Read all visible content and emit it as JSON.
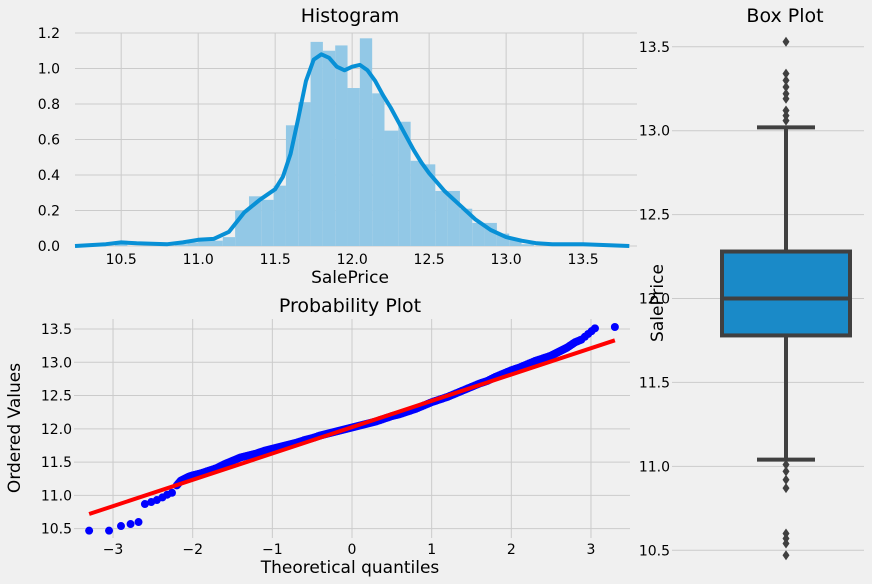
{
  "chart_data": [
    {
      "type": "bar",
      "title": "Histogram",
      "xlabel": "SalePrice",
      "ylabel": "",
      "xlim": [
        10.2,
        13.85
      ],
      "ylim": [
        0,
        1.2
      ],
      "xticks": [
        "10.5",
        "11.0",
        "11.5",
        "12.0",
        "12.5",
        "13.0",
        "13.5"
      ],
      "yticks": [
        "0.0",
        "0.2",
        "0.4",
        "0.6",
        "0.8",
        "1.0",
        "1.2"
      ],
      "grid": true,
      "bins": [
        {
          "x0": 10.46,
          "x1": 10.54,
          "value": 0.01
        },
        {
          "x0": 10.85,
          "x1": 10.93,
          "value": 0.01
        },
        {
          "x0": 10.93,
          "x1": 11.0,
          "value": 0.02
        },
        {
          "x0": 11.0,
          "x1": 11.08,
          "value": 0.03
        },
        {
          "x0": 11.08,
          "x1": 11.16,
          "value": 0.03
        },
        {
          "x0": 11.16,
          "x1": 11.24,
          "value": 0.05
        },
        {
          "x0": 11.24,
          "x1": 11.33,
          "value": 0.2
        },
        {
          "x0": 11.33,
          "x1": 11.41,
          "value": 0.28
        },
        {
          "x0": 11.41,
          "x1": 11.49,
          "value": 0.26
        },
        {
          "x0": 11.49,
          "x1": 11.57,
          "value": 0.34
        },
        {
          "x0": 11.57,
          "x1": 11.65,
          "value": 0.68
        },
        {
          "x0": 11.65,
          "x1": 11.73,
          "value": 0.81
        },
        {
          "x0": 11.73,
          "x1": 11.81,
          "value": 1.15
        },
        {
          "x0": 11.81,
          "x1": 11.89,
          "value": 1.1
        },
        {
          "x0": 11.89,
          "x1": 11.97,
          "value": 1.13
        },
        {
          "x0": 11.97,
          "x1": 12.05,
          "value": 0.89
        },
        {
          "x0": 12.05,
          "x1": 12.13,
          "value": 1.17
        },
        {
          "x0": 12.13,
          "x1": 12.21,
          "value": 0.86
        },
        {
          "x0": 12.21,
          "x1": 12.3,
          "value": 0.65
        },
        {
          "x0": 12.3,
          "x1": 12.38,
          "value": 0.7
        },
        {
          "x0": 12.38,
          "x1": 12.46,
          "value": 0.48
        },
        {
          "x0": 12.46,
          "x1": 12.54,
          "value": 0.46
        },
        {
          "x0": 12.54,
          "x1": 12.62,
          "value": 0.31
        },
        {
          "x0": 12.62,
          "x1": 12.7,
          "value": 0.31
        },
        {
          "x0": 12.7,
          "x1": 12.78,
          "value": 0.21
        },
        {
          "x0": 12.78,
          "x1": 12.86,
          "value": 0.13
        },
        {
          "x0": 12.86,
          "x1": 12.94,
          "value": 0.13
        },
        {
          "x0": 12.94,
          "x1": 13.02,
          "value": 0.07
        },
        {
          "x0": 13.02,
          "x1": 13.1,
          "value": 0.04
        },
        {
          "x0": 13.1,
          "x1": 13.18,
          "value": 0.01
        },
        {
          "x0": 13.43,
          "x1": 13.51,
          "value": 0.01
        }
      ],
      "kde": {
        "x": [
          10.2,
          10.4,
          10.5,
          10.6,
          10.8,
          10.9,
          11.0,
          11.1,
          11.2,
          11.3,
          11.4,
          11.5,
          11.55,
          11.6,
          11.65,
          11.7,
          11.75,
          11.8,
          11.85,
          11.9,
          11.95,
          12.0,
          12.05,
          12.1,
          12.15,
          12.2,
          12.25,
          12.3,
          12.35,
          12.4,
          12.45,
          12.5,
          12.55,
          12.6,
          12.65,
          12.7,
          12.8,
          12.9,
          13.0,
          13.1,
          13.2,
          13.3,
          13.5,
          13.8
        ],
        "y": [
          0.0,
          0.01,
          0.02,
          0.015,
          0.01,
          0.02,
          0.035,
          0.04,
          0.08,
          0.19,
          0.26,
          0.32,
          0.39,
          0.52,
          0.72,
          0.93,
          1.05,
          1.08,
          1.06,
          1.01,
          0.99,
          1.01,
          1.02,
          0.99,
          0.93,
          0.85,
          0.78,
          0.7,
          0.62,
          0.54,
          0.47,
          0.41,
          0.36,
          0.31,
          0.27,
          0.23,
          0.15,
          0.09,
          0.05,
          0.03,
          0.015,
          0.01,
          0.01,
          0.0
        ]
      },
      "colors": {
        "bar": "#92c8e6",
        "kde": "#0890d6"
      }
    },
    {
      "type": "box",
      "title": "Box Plot",
      "ylabel": "SalePrice",
      "ylim": [
        10.43,
        13.6
      ],
      "yticks": [
        "10.5",
        "11.0",
        "11.5",
        "12.0",
        "12.5",
        "13.0",
        "13.5"
      ],
      "grid": true,
      "q1": 11.78,
      "median": 12.0,
      "q3": 12.28,
      "whisker_low": 11.04,
      "whisker_high": 13.02,
      "outliers": [
        13.53,
        13.34,
        13.3,
        13.26,
        13.22,
        13.19,
        13.12,
        13.09,
        13.06,
        11.01,
        10.97,
        10.92,
        10.87,
        10.6,
        10.57,
        10.54,
        10.47
      ],
      "colors": {
        "box": "#1a8ac8",
        "line": "#404040"
      }
    },
    {
      "type": "scatter",
      "title": "Probability Plot",
      "xlabel": "Theoretical quantiles",
      "ylabel": "Ordered Values",
      "xlim": [
        -3.49,
        3.49
      ],
      "ylim": [
        10.36,
        13.65
      ],
      "xticks": [
        "−3",
        "−2",
        "−1",
        "0",
        "1",
        "2",
        "3"
      ],
      "yticks": [
        "10.5",
        "11.0",
        "11.5",
        "12.0",
        "12.5",
        "13.0",
        "13.5"
      ],
      "grid": true,
      "points": {
        "x": [
          -3.3,
          -3.05,
          -2.9,
          -2.78,
          -2.68,
          -2.6,
          -2.52,
          -2.45,
          -2.38,
          -2.32,
          -2.26,
          -2.2,
          -2.15,
          -2.1,
          -2.05,
          -2.0,
          -1.9,
          -1.8,
          -1.7,
          -1.6,
          -1.5,
          -1.4,
          -1.3,
          -1.2,
          -1.1,
          -1.0,
          -0.9,
          -0.8,
          -0.7,
          -0.6,
          -0.5,
          -0.4,
          -0.3,
          -0.2,
          -0.1,
          0.0,
          0.1,
          0.2,
          0.3,
          0.4,
          0.5,
          0.6,
          0.7,
          0.8,
          0.9,
          1.0,
          1.1,
          1.2,
          1.3,
          1.4,
          1.5,
          1.6,
          1.7,
          1.8,
          1.9,
          2.0,
          2.1,
          2.2,
          2.3,
          2.4,
          2.5,
          2.55,
          2.6,
          2.65,
          2.7,
          2.75,
          2.8,
          2.88,
          3.05,
          3.3
        ],
        "y": [
          10.47,
          10.47,
          10.54,
          10.57,
          10.6,
          10.87,
          10.9,
          10.93,
          10.97,
          11.01,
          11.04,
          11.15,
          11.22,
          11.25,
          11.28,
          11.3,
          11.33,
          11.37,
          11.41,
          11.47,
          11.52,
          11.57,
          11.6,
          11.63,
          11.67,
          11.7,
          11.73,
          11.76,
          11.79,
          11.83,
          11.86,
          11.9,
          11.93,
          11.96,
          11.99,
          12.02,
          12.05,
          12.08,
          12.11,
          12.15,
          12.19,
          12.22,
          12.26,
          12.3,
          12.35,
          12.4,
          12.44,
          12.48,
          12.53,
          12.58,
          12.63,
          12.68,
          12.72,
          12.78,
          12.83,
          12.88,
          12.92,
          12.97,
          13.02,
          13.06,
          13.1,
          13.13,
          13.16,
          13.19,
          13.22,
          13.26,
          13.3,
          13.34,
          13.51,
          13.53
        ]
      },
      "fit_line": {
        "x": [
          -3.3,
          3.3
        ],
        "y": [
          10.72,
          13.33
        ]
      },
      "colors": {
        "points": "#0000ff",
        "line": "#ff0000"
      }
    }
  ]
}
